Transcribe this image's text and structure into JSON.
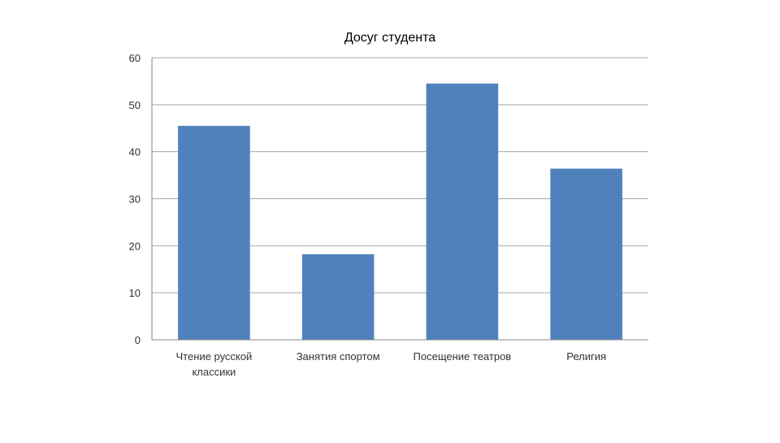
{
  "chart_data": {
    "type": "bar",
    "title": "Досуг студента",
    "categories": [
      [
        "Чтение русской",
        "классики"
      ],
      [
        "Занятия спортом"
      ],
      [
        "Посещение театров"
      ],
      [
        "Религия"
      ]
    ],
    "values": [
      45.5,
      18.2,
      54.5,
      36.4
    ],
    "xlabel": "",
    "ylabel": "",
    "ylim": [
      0,
      60
    ],
    "yticks": [
      "0",
      "10",
      "20",
      "30",
      "40",
      "50",
      "60"
    ],
    "grid": true,
    "legend": "none",
    "bar_color": "#4f81bd"
  }
}
